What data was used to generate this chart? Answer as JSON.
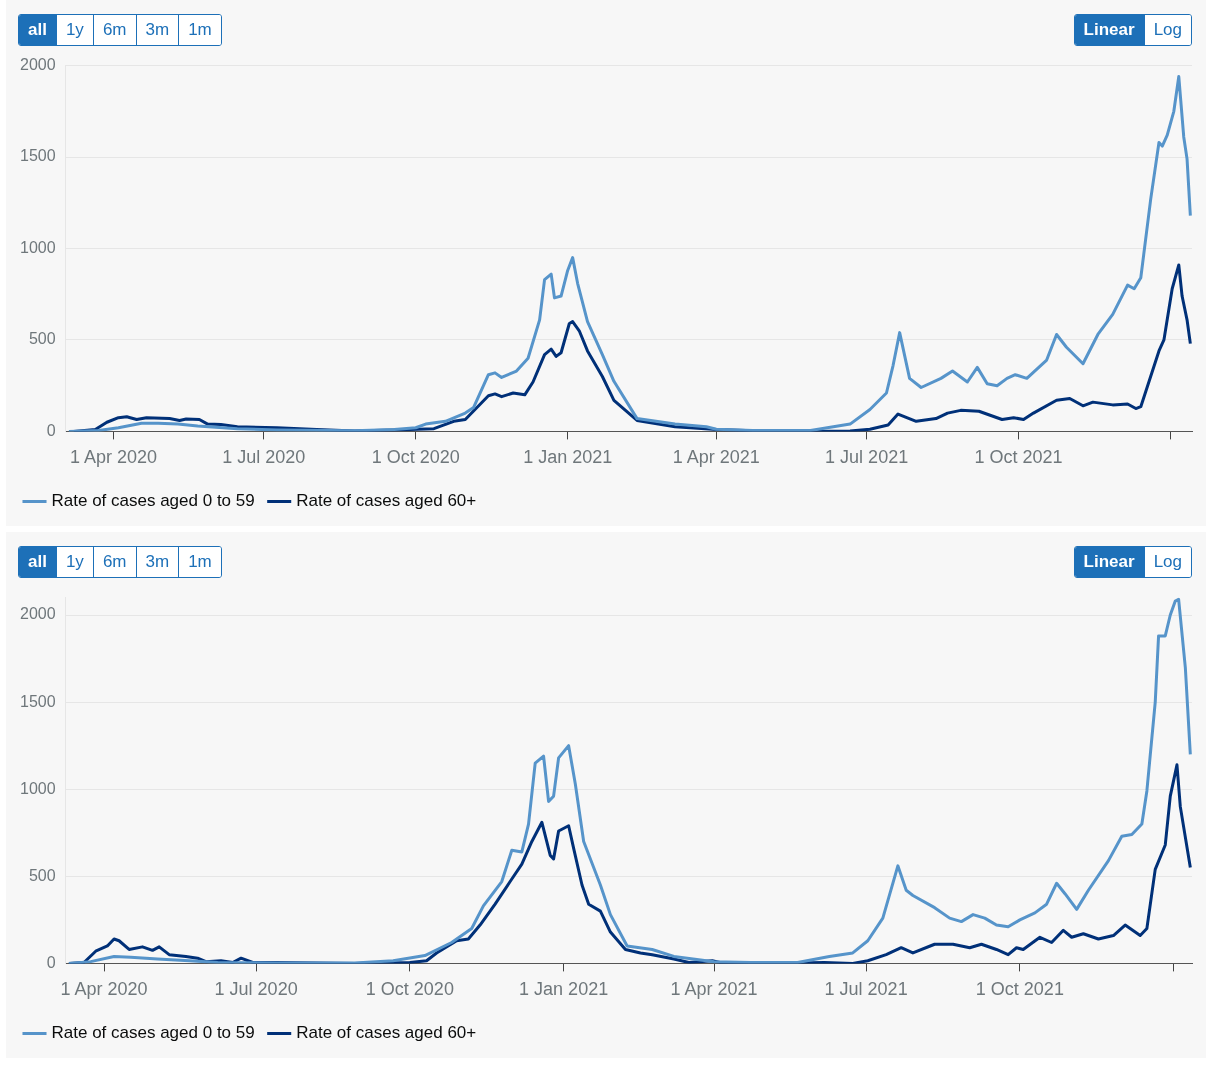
{
  "chart_data": [
    {
      "type": "line",
      "annotations": [
        "all",
        "1y",
        "6m",
        "3m",
        "1m",
        "Linear",
        "Log"
      ],
      "legend": "bottom",
      "grid": "y",
      "marker": "none",
      "line_style": "solid",
      "xlim": [
        "2020-03-03",
        "2022-01-14"
      ],
      "ylim": [
        0,
        2000
      ],
      "yticks": [
        0,
        500,
        1000,
        1500,
        2000
      ],
      "xticks": [
        {
          "value": "2020-04-01",
          "label": "1 Apr 2020"
        },
        {
          "value": "2020-07-01",
          "label": "1 Jul 2020"
        },
        {
          "value": "2020-10-01",
          "label": "1 Oct 2020"
        },
        {
          "value": "2021-01-01",
          "label": "1 Jan 2021"
        },
        {
          "value": "2021-04-01",
          "label": "1 Apr 2021"
        },
        {
          "value": "2021-07-01",
          "label": "1 Jul 2021"
        },
        {
          "value": "2021-10-01",
          "label": "1 Oct 2021"
        },
        {
          "value": "2022-01-01",
          "label": null
        }
      ],
      "series": [
        {
          "name": "Rate of cases aged 0 to 59",
          "color": "#5694ca",
          "x": [
            "2020-03-05",
            "2020-03-23",
            "2020-04-04",
            "2020-04-18",
            "2020-04-28",
            "2020-05-10",
            "2020-05-22",
            "2020-06-15",
            "2020-07-09",
            "2020-08-25",
            "2020-09-18",
            "2020-10-01",
            "2020-10-07",
            "2020-10-19",
            "2020-10-31",
            "2020-11-05",
            "2020-11-14",
            "2020-11-18",
            "2020-11-22",
            "2020-12-01",
            "2020-12-08",
            "2020-12-15",
            "2020-12-18",
            "2020-12-22",
            "2020-12-24",
            "2020-12-28",
            "2021-01-01",
            "2021-01-04",
            "2021-01-07",
            "2021-01-13",
            "2021-01-22",
            "2021-01-29",
            "2021-02-12",
            "2021-03-07",
            "2021-03-26",
            "2021-04-01",
            "2021-04-23",
            "2021-05-28",
            "2021-06-21",
            "2021-07-03",
            "2021-07-13",
            "2021-07-17",
            "2021-07-21",
            "2021-07-27",
            "2021-08-03",
            "2021-08-15",
            "2021-08-22",
            "2021-08-31",
            "2021-09-06",
            "2021-09-12",
            "2021-09-18",
            "2021-09-24",
            "2021-09-29",
            "2021-10-06",
            "2021-10-18",
            "2021-10-24",
            "2021-10-30",
            "2021-11-09",
            "2021-11-18",
            "2021-11-27",
            "2021-12-06",
            "2021-12-10",
            "2021-12-14",
            "2021-12-20",
            "2021-12-25",
            "2021-12-27",
            "2021-12-30",
            "2022-01-03",
            "2022-01-06",
            "2022-01-09",
            "2022-01-11",
            "2022-01-13"
          ],
          "values": [
            0,
            5,
            20,
            45,
            45,
            40,
            30,
            15,
            8,
            3,
            10,
            20,
            40,
            55,
            100,
            130,
            310,
            320,
            295,
            330,
            400,
            610,
            830,
            860,
            730,
            740,
            880,
            950,
            810,
            600,
            420,
            274,
            70,
            40,
            25,
            12,
            5,
            5,
            40,
            120,
            210,
            360,
            540,
            290,
            240,
            290,
            330,
            270,
            350,
            260,
            250,
            290,
            310,
            290,
            390,
            530,
            460,
            370,
            530,
            640,
            800,
            780,
            840,
            1270,
            1580,
            1560,
            1620,
            1750,
            1940,
            1610,
            1490,
            1180
          ]
        },
        {
          "name": "Rate of cases aged 60+",
          "color": "#003078",
          "x": [
            "2020-03-08",
            "2020-03-21",
            "2020-03-28",
            "2020-04-04",
            "2020-04-09",
            "2020-04-15",
            "2020-04-21",
            "2020-05-05",
            "2020-05-11",
            "2020-05-15",
            "2020-05-23",
            "2020-05-28",
            "2020-06-05",
            "2020-06-15",
            "2020-07-09",
            "2020-08-02",
            "2020-08-25",
            "2020-09-18",
            "2020-10-12",
            "2020-10-24",
            "2020-10-31",
            "2020-11-14",
            "2020-11-18",
            "2020-11-22",
            "2020-11-29",
            "2020-12-06",
            "2020-12-11",
            "2020-12-18",
            "2020-12-22",
            "2020-12-25",
            "2020-12-28",
            "2021-01-02",
            "2021-01-04",
            "2021-01-08",
            "2021-01-13",
            "2021-01-22",
            "2021-01-29",
            "2021-02-12",
            "2021-03-07",
            "2021-04-01",
            "2021-04-23",
            "2021-05-28",
            "2021-06-21",
            "2021-07-03",
            "2021-07-14",
            "2021-07-20",
            "2021-07-31",
            "2021-08-12",
            "2021-08-19",
            "2021-08-27",
            "2021-09-07",
            "2021-09-21",
            "2021-09-28",
            "2021-10-04",
            "2021-10-10",
            "2021-10-24",
            "2021-11-01",
            "2021-11-09",
            "2021-11-15",
            "2021-11-27",
            "2021-12-06",
            "2021-12-11",
            "2021-12-14",
            "2021-12-25",
            "2021-12-28",
            "2022-01-02",
            "2022-01-06",
            "2022-01-08",
            "2022-01-11",
            "2022-01-13"
          ],
          "values": [
            0,
            10,
            50,
            75,
            80,
            65,
            75,
            70,
            60,
            68,
            65,
            40,
            38,
            25,
            20,
            10,
            2,
            8,
            15,
            55,
            65,
            195,
            205,
            190,
            210,
            200,
            270,
            420,
            450,
            410,
            430,
            590,
            600,
            550,
            440,
            300,
            170,
            60,
            25,
            10,
            3,
            0,
            2,
            12,
            35,
            95,
            55,
            70,
            100,
            115,
            110,
            65,
            75,
            65,
            100,
            170,
            180,
            140,
            160,
            145,
            150,
            125,
            135,
            440,
            500,
            780,
            910,
            740,
            610,
            480
          ]
        }
      ]
    },
    {
      "type": "line",
      "annotations": [
        "all",
        "1y",
        "6m",
        "3m",
        "1m",
        "Linear",
        "Log"
      ],
      "legend": "bottom",
      "grid": "y",
      "marker": "none",
      "line_style": "solid",
      "xlim": [
        "2020-03-09",
        "2022-01-12"
      ],
      "ylim": [
        0,
        2100
      ],
      "yticks": [
        0,
        500,
        1000,
        1500,
        2000
      ],
      "xticks": [
        {
          "value": "2020-04-01",
          "label": "1 Apr 2020"
        },
        {
          "value": "2020-07-01",
          "label": "1 Jul 2020"
        },
        {
          "value": "2020-10-01",
          "label": "1 Oct 2020"
        },
        {
          "value": "2021-01-01",
          "label": "1 Jan 2021"
        },
        {
          "value": "2021-04-01",
          "label": "1 Apr 2021"
        },
        {
          "value": "2021-07-01",
          "label": "1 Jul 2021"
        },
        {
          "value": "2021-10-01",
          "label": "1 Oct 2021"
        },
        {
          "value": "2022-01-01",
          "label": null
        }
      ],
      "series": [
        {
          "name": "Rate of cases aged 0 to 59",
          "color": "#5694ca",
          "x": [
            "2020-03-11",
            "2020-03-24",
            "2020-04-07",
            "2020-04-17",
            "2020-05-03",
            "2020-05-22",
            "2020-06-08",
            "2020-07-13",
            "2020-08-29",
            "2020-09-21",
            "2020-10-10",
            "2020-10-26",
            "2020-11-07",
            "2020-11-14",
            "2020-11-25",
            "2020-12-01",
            "2020-12-07",
            "2020-12-11",
            "2020-12-15",
            "2020-12-20",
            "2020-12-23",
            "2020-12-26",
            "2020-12-29",
            "2021-01-04",
            "2021-01-08",
            "2021-01-13",
            "2021-01-23",
            "2021-01-29",
            "2021-02-08",
            "2021-02-23",
            "2021-03-08",
            "2021-04-01",
            "2021-04-23",
            "2021-05-21",
            "2021-06-09",
            "2021-06-23",
            "2021-07-02",
            "2021-07-11",
            "2021-07-20",
            "2021-07-25",
            "2021-07-29",
            "2021-08-11",
            "2021-08-20",
            "2021-08-27",
            "2021-09-03",
            "2021-09-10",
            "2021-09-17",
            "2021-09-24",
            "2021-10-01",
            "2021-10-10",
            "2021-10-17",
            "2021-10-23",
            "2021-10-28",
            "2021-11-04",
            "2021-11-11",
            "2021-11-23",
            "2021-12-01",
            "2021-12-07",
            "2021-12-13",
            "2021-12-16",
            "2021-12-21",
            "2021-12-23",
            "2021-12-27",
            "2021-12-30",
            "2022-01-02",
            "2022-01-04",
            "2022-01-08",
            "2022-01-11"
          ],
          "values": [
            0,
            10,
            40,
            35,
            25,
            15,
            5,
            3,
            2,
            15,
            45,
            120,
            200,
            330,
            470,
            650,
            640,
            800,
            1150,
            1190,
            930,
            960,
            1180,
            1250,
            1030,
            700,
            450,
            280,
            100,
            80,
            40,
            10,
            5,
            5,
            40,
            60,
            130,
            260,
            560,
            420,
            390,
            320,
            260,
            240,
            280,
            260,
            220,
            210,
            250,
            290,
            340,
            460,
            400,
            310,
            420,
            590,
            730,
            740,
            800,
            990,
            1500,
            1880,
            1880,
            2000,
            2080,
            2090,
            1700,
            1200
          ]
        },
        {
          "name": "Rate of cases aged 60+",
          "color": "#003078",
          "x": [
            "2020-03-11",
            "2020-03-20",
            "2020-03-27",
            "2020-04-03",
            "2020-04-07",
            "2020-04-10",
            "2020-04-16",
            "2020-04-24",
            "2020-04-30",
            "2020-05-04",
            "2020-05-10",
            "2020-05-20",
            "2020-05-27",
            "2020-06-01",
            "2020-06-10",
            "2020-06-17",
            "2020-06-22",
            "2020-06-29",
            "2020-07-13",
            "2020-08-29",
            "2020-10-01",
            "2020-10-11",
            "2020-10-17",
            "2020-10-29",
            "2020-11-05",
            "2020-11-12",
            "2020-11-21",
            "2020-11-30",
            "2020-12-07",
            "2020-12-13",
            "2020-12-19",
            "2020-12-24",
            "2020-12-26",
            "2020-12-29",
            "2021-01-04",
            "2021-01-07",
            "2021-01-12",
            "2021-01-16",
            "2021-01-23",
            "2021-01-29",
            "2021-02-07",
            "2021-02-16",
            "2021-02-23",
            "2021-03-08",
            "2021-03-17",
            "2021-03-31",
            "2021-04-07",
            "2021-05-04",
            "2021-06-06",
            "2021-06-23",
            "2021-07-02",
            "2021-07-13",
            "2021-07-22",
            "2021-07-29",
            "2021-08-11",
            "2021-08-22",
            "2021-09-01",
            "2021-09-08",
            "2021-09-17",
            "2021-09-24",
            "2021-09-29",
            "2021-10-03",
            "2021-10-13",
            "2021-10-20",
            "2021-10-27",
            "2021-11-01",
            "2021-11-08",
            "2021-11-17",
            "2021-11-26",
            "2021-12-03",
            "2021-12-12",
            "2021-12-16",
            "2021-12-21",
            "2021-12-27",
            "2021-12-30",
            "2022-01-03",
            "2022-01-05",
            "2022-01-11"
          ],
          "values": [
            0,
            5,
            70,
            100,
            140,
            130,
            80,
            95,
            75,
            95,
            50,
            40,
            30,
            10,
            15,
            5,
            30,
            5,
            5,
            0,
            5,
            15,
            60,
            130,
            140,
            220,
            340,
            470,
            570,
            700,
            810,
            620,
            600,
            760,
            790,
            660,
            450,
            340,
            300,
            180,
            80,
            60,
            50,
            25,
            5,
            15,
            0,
            0,
            5,
            0,
            15,
            50,
            90,
            60,
            110,
            110,
            90,
            110,
            80,
            50,
            90,
            80,
            150,
            120,
            190,
            150,
            170,
            140,
            160,
            220,
            160,
            200,
            540,
            680,
            960,
            1140,
            900,
            550
          ]
        }
      ]
    }
  ]
}
